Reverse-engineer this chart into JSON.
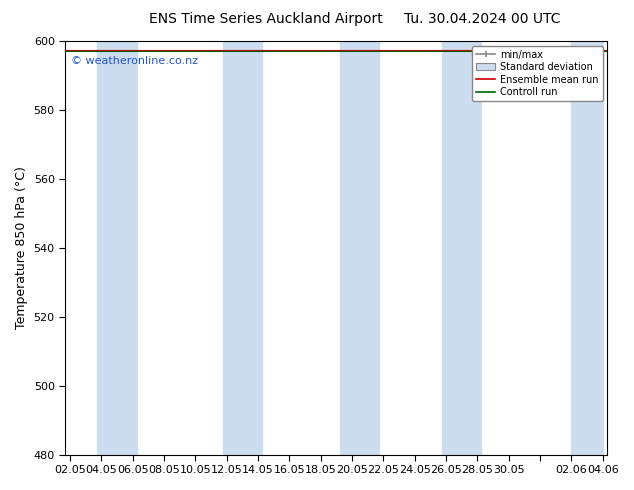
{
  "title_left": "ENS Time Series Auckland Airport",
  "title_right": "Tu. 30.04.2024 00 UTC",
  "ylabel": "Temperature 850 hPa (°C)",
  "ylim": [
    480,
    600
  ],
  "yticks": [
    480,
    500,
    520,
    540,
    560,
    580,
    600
  ],
  "watermark": "© weatheronline.co.nz",
  "watermark_color": "#2255cc",
  "bg_color": "#ffffff",
  "plot_bg_color": "#ffffff",
  "band_color": "#ccddf0",
  "band_alpha": 1.0,
  "legend_entries": [
    "min/max",
    "Standard deviation",
    "Ensemble mean run",
    "Controll run"
  ],
  "xtick_labels": [
    "02.05",
    "04.05",
    "06.05",
    "08.05",
    "10.05",
    "12.05",
    "14.05",
    "16.05",
    "18.05",
    "20.05",
    "22.05",
    "24.05",
    "26.05",
    "28.05",
    "30.05",
    "",
    "02.06",
    "04.06"
  ],
  "x_positions": [
    0,
    2,
    4,
    6,
    8,
    10,
    12,
    14,
    16,
    18,
    20,
    22,
    24,
    26,
    28,
    30,
    32,
    34
  ],
  "xlim": [
    -0.3,
    34.3
  ],
  "band_centers": [
    3,
    11,
    18.5,
    25,
    33
  ],
  "band_widths": [
    2.5,
    2.5,
    2.5,
    2.5,
    2.0
  ],
  "ensemble_y": 597.5,
  "control_y": 597.0,
  "title_fontsize": 10,
  "ylabel_fontsize": 9,
  "tick_fontsize": 8,
  "watermark_fontsize": 8
}
